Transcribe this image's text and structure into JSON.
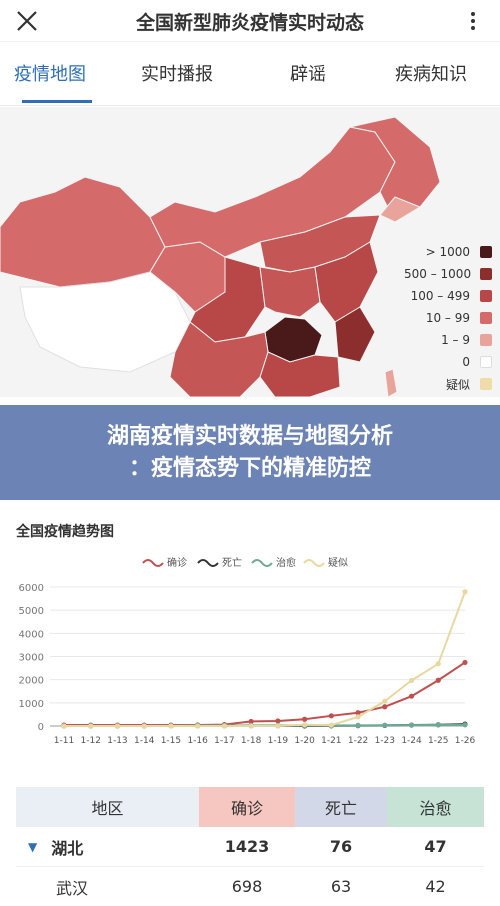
{
  "header": {
    "title": "全国新型肺炎疫情实时动态"
  },
  "tabs": [
    {
      "label": "疫情地图",
      "active": true
    },
    {
      "label": "实时播报",
      "active": false
    },
    {
      "label": "辟谣",
      "active": false
    },
    {
      "label": "疾病知识",
      "active": false
    }
  ],
  "map": {
    "legend": [
      {
        "label": "> 1000",
        "color": "#4a1a1a"
      },
      {
        "label": "500 – 1000",
        "color": "#8c2e2e"
      },
      {
        "label": "100 – 499",
        "color": "#b84848"
      },
      {
        "label": "10 – 99",
        "color": "#d46a6a"
      },
      {
        "label": "1 – 9",
        "color": "#e8a49a"
      },
      {
        "label": "0",
        "color": "#ffffff"
      },
      {
        "label": "疑似",
        "color": "#f0dca8"
      }
    ]
  },
  "banner": {
    "line1": "湖南疫情实时数据与地图分析",
    "line2": "：疫情态势下的精准防控"
  },
  "trend": {
    "title": "全国疫情趋势图",
    "chart_data": {
      "type": "line",
      "x": [
        "1-11",
        "1-12",
        "1-13",
        "1-14",
        "1-15",
        "1-16",
        "1-17",
        "1-18",
        "1-19",
        "1-20",
        "1-21",
        "1-22",
        "1-23",
        "1-24",
        "1-25",
        "1-26"
      ],
      "ylim": [
        0,
        6000
      ],
      "yticks": [
        0,
        1000,
        2000,
        3000,
        4000,
        5000,
        6000
      ],
      "series": [
        {
          "name": "确诊",
          "color": "#c0504d",
          "values": [
            41,
            41,
            41,
            41,
            41,
            45,
            62,
            198,
            218,
            291,
            440,
            571,
            830,
            1287,
            1975,
            2744
          ]
        },
        {
          "name": "死亡",
          "color": "#333333",
          "values": [
            1,
            1,
            1,
            1,
            2,
            2,
            2,
            3,
            4,
            6,
            9,
            17,
            25,
            41,
            56,
            80
          ]
        },
        {
          "name": "治愈",
          "color": "#6aaa96",
          "values": [
            2,
            5,
            6,
            7,
            12,
            15,
            19,
            25,
            25,
            25,
            28,
            28,
            34,
            38,
            49,
            51
          ]
        },
        {
          "name": "疑似",
          "color": "#e8d8a0",
          "values": [
            0,
            0,
            0,
            0,
            0,
            0,
            0,
            0,
            0,
            54,
            37,
            393,
            1072,
            1965,
            2684,
            5794
          ]
        }
      ]
    }
  },
  "table": {
    "headers": [
      "地区",
      "确诊",
      "死亡",
      "治愈"
    ],
    "header_colors": [
      "#eaeef5",
      "#f5c7c0",
      "#d3d8e8",
      "#c6e3d6"
    ],
    "rows": [
      {
        "region": "湖北",
        "expandable": true,
        "confirmed": "1423",
        "deaths": "76",
        "cured": "47",
        "bold": true
      },
      {
        "region": "武汉",
        "expandable": false,
        "confirmed": "698",
        "deaths": "63",
        "cured": "42",
        "bold": false
      }
    ]
  }
}
